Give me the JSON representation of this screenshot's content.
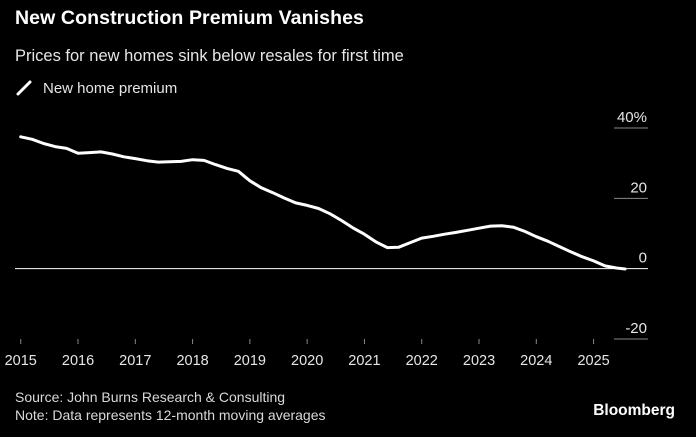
{
  "header": {
    "title": "New Construction Premium Vanishes",
    "subtitle": "Prices for new homes sink below resales for first time"
  },
  "footer": {
    "source": "Source: John Burns Research & Consulting",
    "note": "Note: Data represents 12-month moving averages",
    "logo": "Bloomberg"
  },
  "colors": {
    "background": "#000000",
    "line": "#ffffff",
    "zero_line": "#ffffff",
    "grid": "#888888",
    "text": "#ffffff"
  },
  "chart_data": {
    "type": "line",
    "legend": [
      "New home premium"
    ],
    "legend_position": "top-left",
    "y_axis_side": "right",
    "ylim": [
      -20,
      40
    ],
    "y_ticks": [
      40,
      20,
      0,
      -20
    ],
    "y_tick_labels": [
      "40%",
      "20",
      "0",
      "-20"
    ],
    "x_ticks": [
      2015,
      2016,
      2017,
      2018,
      2019,
      2020,
      2021,
      2022,
      2023,
      2024,
      2025
    ],
    "xlim": [
      2014.9,
      2025.95
    ],
    "grid": false,
    "series": [
      {
        "name": "New home premium",
        "x": [
          2015.0,
          2015.2,
          2015.4,
          2015.6,
          2015.8,
          2016.0,
          2016.2,
          2016.4,
          2016.6,
          2016.8,
          2017.0,
          2017.2,
          2017.4,
          2017.6,
          2017.8,
          2018.0,
          2018.2,
          2018.4,
          2018.6,
          2018.8,
          2019.0,
          2019.2,
          2019.4,
          2019.6,
          2019.8,
          2020.0,
          2020.2,
          2020.4,
          2020.6,
          2020.8,
          2021.0,
          2021.2,
          2021.4,
          2021.6,
          2021.8,
          2022.0,
          2022.2,
          2022.4,
          2022.6,
          2022.8,
          2023.0,
          2023.2,
          2023.4,
          2023.6,
          2023.8,
          2024.0,
          2024.2,
          2024.4,
          2024.6,
          2024.8,
          2025.0,
          2025.2,
          2025.4,
          2025.55
        ],
        "values": [
          37.5,
          36.8,
          35.6,
          34.7,
          34.2,
          32.8,
          33.0,
          33.2,
          32.6,
          31.8,
          31.3,
          30.7,
          30.3,
          30.4,
          30.5,
          31.0,
          30.8,
          29.6,
          28.5,
          27.7,
          25.0,
          23.0,
          21.6,
          20.1,
          18.7,
          18.0,
          17.1,
          15.6,
          13.7,
          11.6,
          9.8,
          7.6,
          6.0,
          6.1,
          7.4,
          8.7,
          9.2,
          9.8,
          10.3,
          10.9,
          11.5,
          12.1,
          12.2,
          11.8,
          10.6,
          9.1,
          7.8,
          6.3,
          4.8,
          3.4,
          2.2,
          0.8,
          0.2,
          -0.1
        ]
      }
    ]
  }
}
